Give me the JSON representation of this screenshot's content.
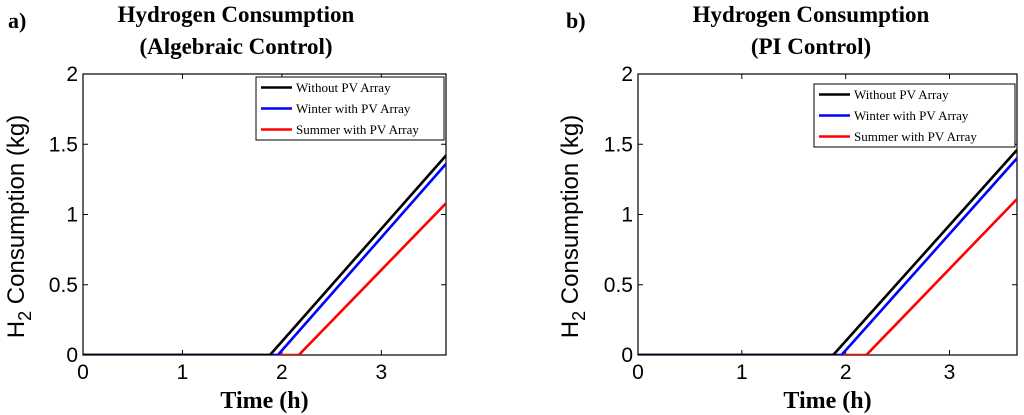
{
  "chart_data": [
    {
      "panel_label": "a)",
      "type": "line",
      "title_lines": [
        "Hydrogen Consumption",
        "(Algebraic Control)"
      ],
      "xlabel": "Time (h)",
      "ylabel_main": "H",
      "ylabel_sub": "2",
      "ylabel_rest": " Consumption (kg)",
      "xlim": [
        0,
        3.65
      ],
      "ylim": [
        0,
        2
      ],
      "xticks": [
        "0",
        "1",
        "2",
        "3"
      ],
      "yticks": [
        "0",
        "0.5",
        "1",
        "1.5",
        "2"
      ],
      "legend_position": "top-right",
      "series": [
        {
          "name": "Without PV Array",
          "color": "#000000",
          "x": [
            0,
            1.88,
            3.65
          ],
          "y": [
            0,
            0,
            1.42
          ]
        },
        {
          "name": "Winter with PV Array",
          "color": "#0000ff",
          "x": [
            0,
            1.96,
            3.65
          ],
          "y": [
            0,
            0,
            1.36
          ]
        },
        {
          "name": "Summer with PV Array",
          "color": "#ff0000",
          "x": [
            0,
            2.17,
            3.65
          ],
          "y": [
            0,
            0,
            1.08
          ]
        }
      ]
    },
    {
      "panel_label": "b)",
      "type": "line",
      "title_lines": [
        "Hydrogen Consumption",
        "(PI Control)"
      ],
      "xlabel": "Time (h)",
      "ylabel_main": "H",
      "ylabel_sub": "2",
      "ylabel_rest": " Consumption (kg)",
      "xlim": [
        0,
        3.65
      ],
      "ylim": [
        0,
        2
      ],
      "xticks": [
        "0",
        "1",
        "2",
        "3"
      ],
      "yticks": [
        "0",
        "0.5",
        "1",
        "1.5",
        "2"
      ],
      "legend_position": "top-right",
      "series": [
        {
          "name": "Without PV Array",
          "color": "#000000",
          "x": [
            0,
            1.88,
            3.65
          ],
          "y": [
            0,
            0,
            1.46
          ]
        },
        {
          "name": "Winter with PV Array",
          "color": "#0000ff",
          "x": [
            0,
            1.96,
            3.65
          ],
          "y": [
            0,
            0,
            1.4
          ]
        },
        {
          "name": "Summer with PV Array",
          "color": "#ff0000",
          "x": [
            0,
            2.2,
            3.65
          ],
          "y": [
            0,
            0,
            1.11
          ]
        }
      ]
    }
  ]
}
